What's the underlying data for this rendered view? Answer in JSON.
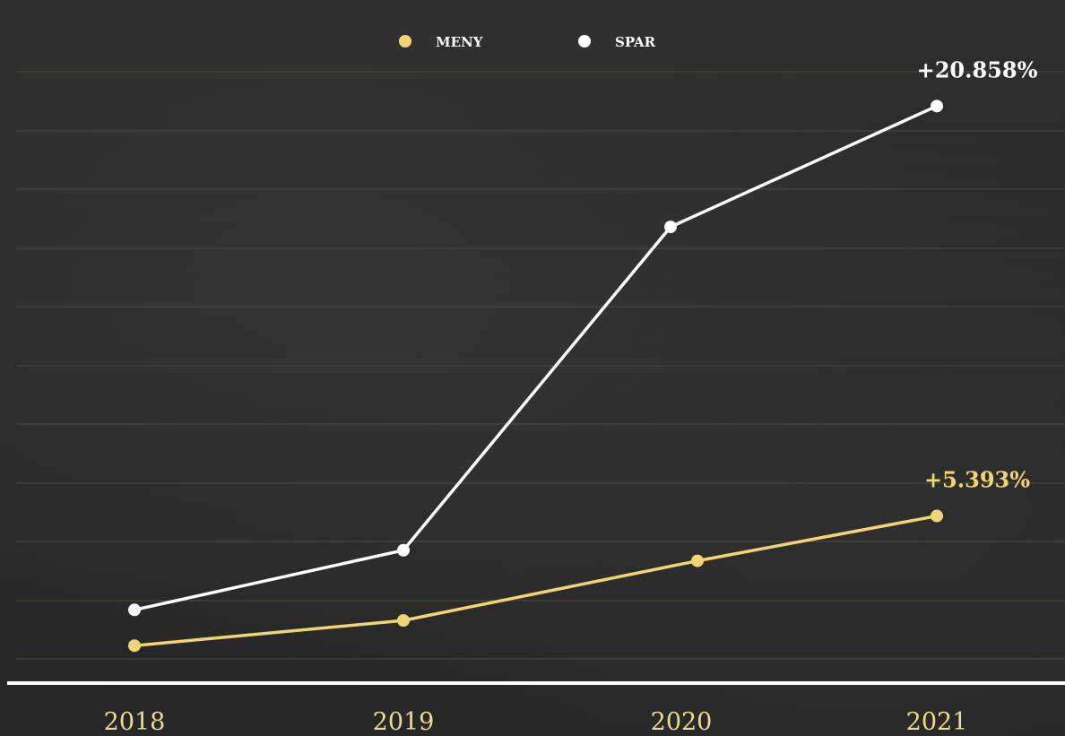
{
  "chart_data": {
    "type": "line",
    "title": "",
    "xlabel": "",
    "ylabel": "",
    "categories": [
      "2018",
      "2019",
      "2020",
      "2021"
    ],
    "ylim": [
      0,
      23000
    ],
    "grid": true,
    "legend_position": "top-center",
    "series": [
      {
        "name": "MENY",
        "color": "#f1d575",
        "values": [
          500,
          1450,
          3700,
          5393
        ],
        "end_label": "+5.393%"
      },
      {
        "name": "SPAR",
        "color": "#ffffff",
        "values": [
          1850,
          4100,
          16300,
          20858
        ],
        "end_label": "+20.858%"
      }
    ]
  },
  "colors": {
    "gridline": "#4d4d3a",
    "baseline": "#ffffff",
    "tick_label": "#f1d98b"
  }
}
